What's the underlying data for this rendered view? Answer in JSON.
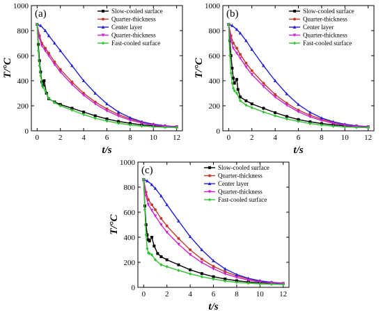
{
  "chart_data": [
    {
      "panel": "(a)",
      "type": "line",
      "xlabel": "t/s",
      "ylabel": "T/°C",
      "xlim": [
        -0.5,
        12.5
      ],
      "ylim": [
        0,
        1000
      ],
      "xticks": [
        0,
        2,
        4,
        6,
        8,
        10,
        12
      ],
      "yticks": [
        0,
        200,
        400,
        600,
        800,
        1000
      ],
      "legend_position": "top-right",
      "series": [
        {
          "name": "Slow-cooled surface",
          "color": "#000000",
          "marker": "square",
          "x": [
            0,
            0.1,
            0.2,
            0.3,
            0.4,
            0.5,
            0.6,
            0.8,
            1.0,
            1.5,
            2,
            3,
            4,
            5,
            6,
            7,
            8,
            9,
            10,
            11,
            12
          ],
          "y": [
            850,
            690,
            560,
            470,
            390,
            360,
            400,
            300,
            255,
            230,
            210,
            180,
            150,
            120,
            95,
            75,
            60,
            48,
            40,
            35,
            32
          ]
        },
        {
          "name": "Quarter-thickness",
          "color": "#c0392b",
          "marker": "circle",
          "x": [
            0,
            0.2,
            0.4,
            0.7,
            1.0,
            1.5,
            2,
            3,
            4,
            5,
            6,
            7,
            8,
            9,
            10,
            11,
            12
          ],
          "y": [
            850,
            760,
            700,
            660,
            620,
            550,
            490,
            390,
            300,
            230,
            175,
            130,
            95,
            70,
            52,
            40,
            32
          ]
        },
        {
          "name": "Center layer",
          "color": "#1f1fd6",
          "marker": "triangle",
          "x": [
            0,
            0.3,
            0.7,
            1,
            1.5,
            2,
            3,
            4,
            5,
            6,
            7,
            8,
            9,
            10,
            11,
            12
          ],
          "y": [
            850,
            840,
            800,
            760,
            700,
            640,
            520,
            400,
            300,
            215,
            150,
            105,
            72,
            52,
            40,
            32
          ]
        },
        {
          "name": "Quarter-thickness",
          "color": "#d020d0",
          "marker": "triangle-down",
          "x": [
            0,
            0.2,
            0.4,
            0.7,
            1.0,
            1.5,
            2,
            3,
            4,
            5,
            6,
            7,
            8,
            9,
            10,
            11,
            12
          ],
          "y": [
            850,
            740,
            680,
            640,
            600,
            530,
            470,
            370,
            285,
            215,
            160,
            118,
            85,
            62,
            46,
            36,
            30
          ]
        },
        {
          "name": "Fast-cooled surface",
          "color": "#2fc42f",
          "marker": "diamond",
          "x": [
            0,
            0.1,
            0.2,
            0.3,
            0.4,
            0.5,
            0.7,
            1.0,
            1.5,
            2,
            3,
            4,
            5,
            6,
            7,
            8,
            9,
            10,
            11,
            12
          ],
          "y": [
            850,
            640,
            520,
            440,
            380,
            350,
            320,
            260,
            225,
            200,
            165,
            130,
            100,
            78,
            60,
            47,
            38,
            32,
            28,
            26
          ]
        }
      ]
    },
    {
      "panel": "(b)",
      "type": "line",
      "xlabel": "t/s",
      "ylabel": "T/°C",
      "xlim": [
        -0.5,
        12.5
      ],
      "ylim": [
        0,
        1000
      ],
      "xticks": [
        0,
        2,
        4,
        6,
        8,
        10,
        12
      ],
      "yticks": [
        0,
        200,
        400,
        600,
        800,
        1000
      ],
      "legend_position": "top-right",
      "series": [
        {
          "name": "Slow-cooled surface",
          "color": "#000000",
          "marker": "square",
          "x": [
            0,
            0.1,
            0.2,
            0.3,
            0.4,
            0.5,
            0.7,
            0.8,
            1.0,
            1.5,
            2,
            3,
            4,
            5,
            6,
            7,
            8,
            9,
            10,
            11,
            12
          ],
          "y": [
            850,
            720,
            600,
            500,
            420,
            380,
            410,
            330,
            270,
            240,
            215,
            180,
            145,
            115,
            90,
            72,
            58,
            47,
            40,
            35,
            32
          ]
        },
        {
          "name": "Quarter-thickness",
          "color": "#c0392b",
          "marker": "circle",
          "x": [
            0,
            0.2,
            0.4,
            0.7,
            1.0,
            1.5,
            2,
            3,
            4,
            5,
            6,
            7,
            8,
            9,
            10,
            11,
            12
          ],
          "y": [
            850,
            760,
            700,
            660,
            610,
            540,
            480,
            380,
            290,
            220,
            165,
            125,
            92,
            68,
            50,
            40,
            32
          ]
        },
        {
          "name": "Center layer",
          "color": "#1f1fd6",
          "marker": "triangle",
          "x": [
            0,
            0.3,
            0.7,
            1,
            1.5,
            2,
            3,
            4,
            5,
            6,
            7,
            8,
            9,
            10,
            11,
            12
          ],
          "y": [
            850,
            840,
            810,
            780,
            720,
            650,
            520,
            400,
            295,
            210,
            148,
            102,
            72,
            52,
            40,
            32
          ]
        },
        {
          "name": "Quarter-thickness",
          "color": "#d020d0",
          "marker": "triangle-down",
          "x": [
            0,
            0.2,
            0.4,
            0.7,
            1.0,
            1.5,
            2,
            3,
            4,
            5,
            6,
            7,
            8,
            9,
            10,
            11,
            12
          ],
          "y": [
            850,
            720,
            660,
            620,
            580,
            510,
            450,
            355,
            270,
            205,
            152,
            112,
            82,
            60,
            45,
            35,
            30
          ]
        },
        {
          "name": "Fast-cooled surface",
          "color": "#2fc42f",
          "marker": "diamond",
          "x": [
            0,
            0.1,
            0.2,
            0.3,
            0.4,
            0.5,
            0.7,
            1.0,
            1.5,
            2,
            3,
            4,
            5,
            6,
            7,
            8,
            9,
            10,
            11,
            12
          ],
          "y": [
            850,
            600,
            460,
            380,
            340,
            320,
            300,
            240,
            205,
            185,
            150,
            120,
            95,
            75,
            58,
            46,
            37,
            31,
            27,
            25
          ]
        }
      ]
    },
    {
      "panel": "(c)",
      "type": "line",
      "xlabel": "t/s",
      "ylabel": "T/°C",
      "xlim": [
        -0.5,
        12.5
      ],
      "ylim": [
        0,
        1000
      ],
      "xticks": [
        0,
        2,
        4,
        6,
        8,
        10,
        12
      ],
      "yticks": [
        0,
        200,
        400,
        600,
        800,
        1000
      ],
      "legend_position": "top-right",
      "series": [
        {
          "name": "Slow-cooled surface",
          "color": "#000000",
          "marker": "square",
          "x": [
            0,
            0.1,
            0.2,
            0.3,
            0.4,
            0.5,
            0.7,
            0.9,
            1.2,
            1.5,
            2,
            3,
            4,
            5,
            6,
            7,
            8,
            9,
            10,
            11,
            12
          ],
          "y": [
            860,
            650,
            500,
            420,
            380,
            370,
            400,
            330,
            270,
            245,
            220,
            180,
            140,
            110,
            85,
            67,
            53,
            43,
            37,
            33,
            30
          ]
        },
        {
          "name": "Quarter-thickness",
          "color": "#c0392b",
          "marker": "circle",
          "x": [
            0,
            0.2,
            0.4,
            0.7,
            1.0,
            1.5,
            2,
            3,
            4,
            5,
            6,
            7,
            8,
            9,
            10,
            11,
            12
          ],
          "y": [
            860,
            760,
            700,
            660,
            620,
            550,
            490,
            390,
            300,
            225,
            168,
            125,
            92,
            68,
            50,
            40,
            32
          ]
        },
        {
          "name": "Center layer",
          "color": "#1f1fd6",
          "marker": "triangle",
          "x": [
            0,
            0.3,
            0.7,
            1,
            1.5,
            2,
            3,
            4,
            5,
            6,
            7,
            8,
            9,
            10,
            11,
            12
          ],
          "y": [
            860,
            850,
            820,
            790,
            730,
            660,
            530,
            405,
            300,
            212,
            148,
            102,
            72,
            52,
            40,
            32
          ]
        },
        {
          "name": "Quarter-thickness",
          "color": "#d020d0",
          "marker": "triangle-down",
          "x": [
            0,
            0.2,
            0.4,
            0.7,
            1.0,
            1.5,
            2,
            3,
            4,
            5,
            6,
            7,
            8,
            9,
            10,
            11,
            12
          ],
          "y": [
            860,
            730,
            660,
            615,
            570,
            500,
            440,
            345,
            262,
            198,
            148,
            108,
            80,
            58,
            44,
            35,
            30
          ]
        },
        {
          "name": "Fast-cooled surface",
          "color": "#2fc42f",
          "marker": "diamond",
          "x": [
            0,
            0.1,
            0.2,
            0.3,
            0.4,
            0.5,
            0.7,
            1.0,
            1.5,
            2,
            3,
            4,
            5,
            6,
            7,
            8,
            9,
            10,
            11,
            12
          ],
          "y": [
            860,
            620,
            420,
            310,
            275,
            270,
            260,
            220,
            180,
            165,
            135,
            108,
            85,
            66,
            51,
            40,
            33,
            28,
            25,
            23
          ]
        }
      ]
    }
  ]
}
